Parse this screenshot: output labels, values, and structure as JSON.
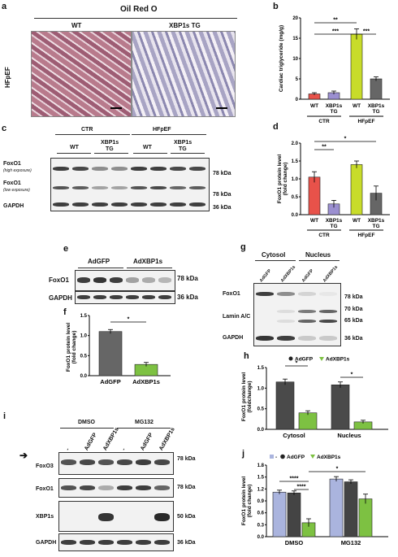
{
  "panels": {
    "a": "a",
    "b": "b",
    "c": "c",
    "d": "d",
    "e": "e",
    "f": "f",
    "g": "g",
    "h": "h",
    "i": "i",
    "j": "j"
  },
  "a": {
    "title": "Oil Red O",
    "wt": "WT",
    "tg": "XBP1s TG",
    "row_label": "HFpEF"
  },
  "b": {
    "chart_data": {
      "type": "bar",
      "ylabel": "Cardiac triglyceride (mg/g)",
      "ylim": [
        0,
        20
      ],
      "yticks": [
        0,
        5,
        10,
        15,
        20
      ],
      "categories": [
        "WT",
        "XBP1s TG",
        "WT",
        "XBP1s TG"
      ],
      "groups": [
        "CTR",
        "HFpEF"
      ],
      "values": [
        1.3,
        1.6,
        16.0,
        5.0
      ],
      "errors": [
        0.3,
        0.4,
        1.3,
        0.5
      ],
      "colors": [
        "#e8524a",
        "#9b8fd0",
        "#c8dc2a",
        "#666666"
      ],
      "sig": [
        "**",
        "***",
        "***"
      ]
    },
    "cat_wt": "WT",
    "cat_tg1": "XBP1s",
    "cat_tg2": "TG",
    "grp_ctr": "CTR",
    "grp_hf": "HFpEF"
  },
  "c": {
    "ctr": "CTR",
    "hf": "HFpEF",
    "wt": "WT",
    "tg1": "XBP1s",
    "tg2": "TG",
    "foxo1_hi": "FoxO1",
    "hi_sub": "(high exposure)",
    "foxo1_lo": "FoxO1",
    "lo_sub": "(low exposure)",
    "gapdh": "GAPDH",
    "kda78a": "78 kDa",
    "kda78b": "78 kDa",
    "kda36": "36 kDa"
  },
  "d": {
    "chart_data": {
      "type": "bar",
      "ylabel": "FoxO1 protein level",
      "ylabel2": "(fold change)",
      "ylim": [
        0,
        2.0
      ],
      "yticks": [
        "0.0",
        "0.5",
        "1.0",
        "1.5",
        "2.0"
      ],
      "values": [
        1.05,
        0.3,
        1.4,
        0.6
      ],
      "errors": [
        0.15,
        0.1,
        0.1,
        0.2
      ],
      "colors": [
        "#e8524a",
        "#9b8fd0",
        "#c8dc2a",
        "#666666"
      ],
      "sig": [
        "**",
        "*"
      ]
    },
    "cat_wt": "WT",
    "cat_tg1": "XBP1s",
    "cat_tg2": "TG",
    "grp_ctr": "CTR",
    "grp_hf": "HFpEF"
  },
  "e": {
    "adgfp": "AdGFP",
    "adxbp": "AdXBP1s",
    "foxo1": "FoxO1",
    "gapdh": "GAPDH",
    "kda78": "78 kDa",
    "kda36": "36 kDa"
  },
  "f": {
    "chart_data": {
      "type": "bar",
      "ylabel": "FoxO1 protein level",
      "ylabel2": "(fold change)",
      "ylim": [
        0,
        1.5
      ],
      "yticks": [
        "0.0",
        "0.5",
        "1.0",
        "1.5"
      ],
      "categories": [
        "AdGFP",
        "AdXBP1s"
      ],
      "values": [
        1.1,
        0.28
      ],
      "errors": [
        0.05,
        0.05
      ],
      "colors": [
        "#666666",
        "#7dc142"
      ],
      "sig": [
        "*"
      ]
    }
  },
  "g": {
    "cytosol": "Cytosol",
    "nucleus": "Nucleus",
    "lanes": [
      "AdGFP",
      "AdXBP1s",
      "AdGFP",
      "AdXBP1s"
    ],
    "foxo1": "FoxO1",
    "lamin": "Lamin A/C",
    "gapdh": "GAPDH",
    "kda78": "78 kDa",
    "kda70": "70 kDa",
    "kda65": "65 kDa",
    "kda36": "36 kDa"
  },
  "h": {
    "chart_data": {
      "type": "bar",
      "ylabel": "FoxO1 protein level",
      "ylabel2": "(foldchange)",
      "ylim": [
        0,
        1.5
      ],
      "yticks": [
        "0.0",
        "0.5",
        "1.0",
        "1.5"
      ],
      "categories": [
        "Cytosol",
        "Nucleus"
      ],
      "series": [
        {
          "name": "AdGFP",
          "values": [
            1.15,
            1.08
          ],
          "errors": [
            0.07,
            0.07
          ]
        },
        {
          "name": "AdXBP1s",
          "values": [
            0.4,
            0.18
          ],
          "errors": [
            0.05,
            0.04
          ]
        }
      ],
      "colors": [
        "#4a4a4a",
        "#7dc142"
      ],
      "sig": [
        "*",
        "*"
      ]
    },
    "legend_gfp": "AdGFP",
    "legend_xbp": "AdXBP1s"
  },
  "i": {
    "dmso": "DMSO",
    "mg132": "MG132",
    "lanes": [
      "-",
      "AdGFP",
      "AdXBP1s",
      "-",
      "AdGFP",
      "AdXBP1s"
    ],
    "foxo3": "FoxO3",
    "foxo1": "FoxO1",
    "xbp1s": "XBP1s",
    "gapdh": "GAPDH",
    "kda78a": "78 kDa",
    "kda78b": "78 kDa",
    "kda50": "50 kDa",
    "kda36": "36 kDa"
  },
  "j": {
    "chart_data": {
      "type": "bar",
      "ylabel": "FoxO1 protein level",
      "ylabel2": "(fold change)",
      "ylim": [
        0,
        1.8
      ],
      "yticks": [
        "0.0",
        "0.3",
        "0.6",
        "0.9",
        "1.2",
        "1.5",
        "1.8"
      ],
      "categories": [
        "DMSO",
        "MG132"
      ],
      "series": [
        {
          "name": "-",
          "values": [
            1.12,
            1.45
          ],
          "errors": [
            0.05,
            0.06
          ]
        },
        {
          "name": "AdGFP",
          "values": [
            1.1,
            1.38
          ],
          "errors": [
            0.05,
            0.05
          ]
        },
        {
          "name": "AdXBP1s",
          "values": [
            0.35,
            0.95
          ],
          "errors": [
            0.1,
            0.12
          ]
        }
      ],
      "colors": [
        "#aab4de",
        "#444444",
        "#7dc142"
      ],
      "sig": [
        "****",
        "****",
        "*"
      ]
    },
    "legend_none": "-",
    "legend_gfp": "AdGFP",
    "legend_xbp": "AdXBP1s"
  }
}
